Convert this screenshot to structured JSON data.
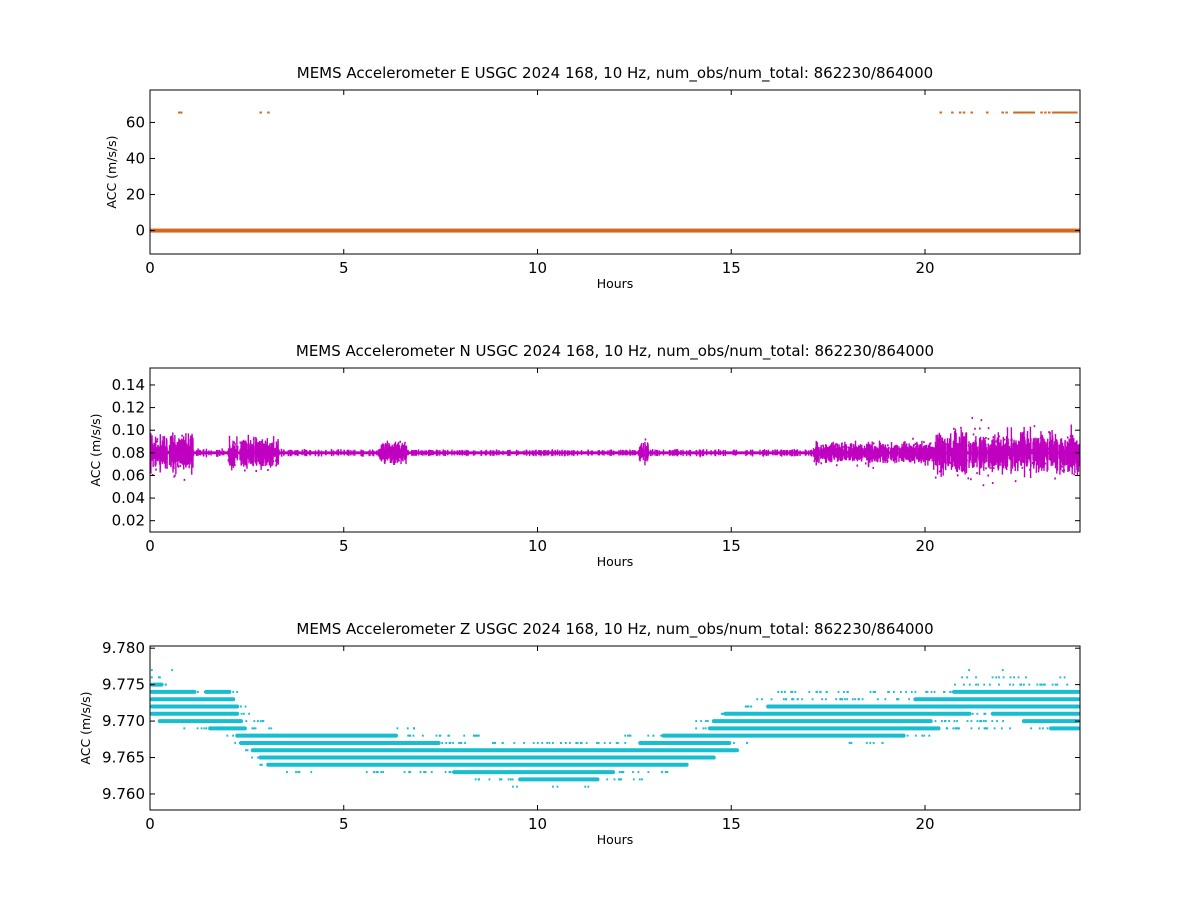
{
  "chart_data": [
    {
      "type": "scatter",
      "title": "MEMS Accelerometer E USGC 2024 168, 10 Hz, num_obs/num_total: 862230/864000",
      "xlabel": "Hours",
      "ylabel": "ACC (m/s/s)",
      "xlim": [
        0,
        24
      ],
      "ylim": [
        -13,
        78
      ],
      "xticks": [
        0,
        5,
        10,
        15,
        20
      ],
      "yticks": [
        0,
        20,
        40,
        60
      ],
      "color": "#d2691e",
      "series": [
        {
          "baseline": {
            "x_range": [
              0,
              24
            ],
            "y": 0
          },
          "spikes": {
            "y": 65.5,
            "x": [
              0.75,
              0.8,
              2.85,
              3.05,
              20.4,
              20.7,
              20.9,
              21.0,
              21.2,
              21.6,
              22.0,
              22.1,
              22.3,
              22.35,
              22.4,
              22.45,
              22.5,
              22.55,
              22.6,
              22.65,
              22.7,
              22.75,
              22.8,
              23.0,
              23.1,
              23.2,
              23.3,
              23.35,
              23.4,
              23.45,
              23.5,
              23.55,
              23.6,
              23.65,
              23.7,
              23.75,
              23.8,
              23.85,
              23.9
            ]
          }
        }
      ]
    },
    {
      "type": "scatter",
      "title": "MEMS Accelerometer N USGC 2024 168, 10 Hz, num_obs/num_total: 862230/864000",
      "xlabel": "Hours",
      "ylabel": "ACC (m/s/s)",
      "xlim": [
        0,
        24
      ],
      "ylim": [
        0.01,
        0.155
      ],
      "xticks": [
        0,
        5,
        10,
        15,
        20
      ],
      "yticks": [
        0.02,
        0.04,
        0.06,
        0.08,
        0.1,
        0.12,
        0.14
      ],
      "ytick_labels": [
        "0.02",
        "0.04",
        "0.06",
        "0.08",
        "0.10",
        "0.12",
        "0.14"
      ],
      "color": "#c000c0",
      "series": [
        {
          "center": 0.08,
          "segments": [
            {
              "x": [
                0.0,
                1.1
              ],
              "spread": 0.045
            },
            {
              "x": [
                1.1,
                2.0
              ],
              "spread": 0.005
            },
            {
              "x": [
                2.0,
                3.3
              ],
              "spread": 0.035
            },
            {
              "x": [
                3.3,
                5.9
              ],
              "spread": 0.004
            },
            {
              "x": [
                5.9,
                6.6
              ],
              "spread": 0.022
            },
            {
              "x": [
                6.6,
                12.6
              ],
              "spread": 0.003
            },
            {
              "x": [
                12.6,
                12.85
              ],
              "spread": 0.022
            },
            {
              "x": [
                12.85,
                17.1
              ],
              "spread": 0.004
            },
            {
              "x": [
                17.1,
                20.2
              ],
              "spread": 0.022
            },
            {
              "x": [
                20.2,
                24.0
              ],
              "spread": 0.048
            }
          ]
        }
      ]
    },
    {
      "type": "scatter",
      "title": "MEMS Accelerometer Z USGC 2024 168, 10 Hz, num_obs/num_total: 862230/864000",
      "xlabel": "Hours",
      "ylabel": "ACC (m/s/s)",
      "xlim": [
        0,
        24
      ],
      "ylim": [
        9.7578,
        9.7803
      ],
      "xticks": [
        0,
        5,
        10,
        15,
        20
      ],
      "yticks": [
        9.76,
        9.765,
        9.77,
        9.775,
        9.78
      ],
      "ytick_labels": [
        "9.760",
        "9.765",
        "9.770",
        "9.775",
        "9.780"
      ],
      "color": "#17becf",
      "series": [
        {
          "quantization": 0.001,
          "bands": [
            {
              "y": 9.777,
              "dense": [],
              "sparse": [
                [
                  0.0,
                  0.05
                ],
                [
                  0.5,
                  0.55
                ],
                [
                  21.1,
                  21.2
                ],
                [
                  21.9,
                  22.0
                ]
              ]
            },
            {
              "y": 9.776,
              "dense": [],
              "sparse": [
                [
                  0.0,
                  0.1
                ],
                [
                  0.1,
                  0.4
                ],
                [
                  20.9,
                  21.3
                ],
                [
                  21.6,
                  22.6
                ],
                [
                  23.3,
                  23.6
                ]
              ]
            },
            {
              "y": 9.775,
              "dense": [
                [
                  0.0,
                  0.35
                ]
              ],
              "sparse": [
                [
                  0.35,
                  0.6
                ],
                [
                  20.6,
                  24.0
                ]
              ]
            },
            {
              "y": 9.774,
              "dense": [
                [
                  0.0,
                  1.2
                ],
                [
                  1.4,
                  2.1
                ],
                [
                  20.7,
                  24.0
                ]
              ],
              "sparse": [
                [
                  1.2,
                  1.4
                ],
                [
                  2.1,
                  2.3
                ],
                [
                  16.1,
                  20.7
                ]
              ]
            },
            {
              "y": 9.773,
              "dense": [
                [
                  0.0,
                  2.2
                ],
                [
                  19.7,
                  24.0
                ]
              ],
              "sparse": [
                [
                  15.5,
                  19.7
                ]
              ]
            },
            {
              "y": 9.772,
              "dense": [
                [
                  0.0,
                  2.3
                ],
                [
                  15.9,
                  24.0
                ]
              ],
              "sparse": [
                [
                  2.3,
                  2.5
                ],
                [
                  15.2,
                  15.9
                ]
              ]
            },
            {
              "y": 9.771,
              "dense": [
                [
                  0.0,
                  2.3
                ],
                [
                  14.8,
                  21.2
                ],
                [
                  21.7,
                  24.0
                ]
              ],
              "sparse": [
                [
                  2.3,
                  2.7
                ],
                [
                  14.4,
                  14.8
                ],
                [
                  21.2,
                  21.7
                ]
              ]
            },
            {
              "y": 9.77,
              "dense": [
                [
                  0.2,
                  2.4
                ],
                [
                  14.5,
                  20.2
                ],
                [
                  22.5,
                  24.0
                ]
              ],
              "sparse": [
                [
                  2.4,
                  3.2
                ],
                [
                  14.0,
                  14.5
                ],
                [
                  20.2,
                  22.5
                ]
              ]
            },
            {
              "y": 9.769,
              "dense": [
                [
                  1.5,
                  2.5
                ],
                [
                  14.4,
                  20.4
                ],
                [
                  23.2,
                  24.0
                ]
              ],
              "sparse": [
                [
                  0.8,
                  1.5
                ],
                [
                  2.5,
                  3.2
                ],
                [
                  6.3,
                  6.8
                ],
                [
                  13.9,
                  14.4
                ],
                [
                  20.4,
                  23.2
                ]
              ]
            },
            {
              "y": 9.768,
              "dense": [
                [
                  2.2,
                  6.4
                ],
                [
                  13.2,
                  19.5
                ]
              ],
              "sparse": [
                [
                  1.9,
                  2.2
                ],
                [
                  6.4,
                  8.6
                ],
                [
                  12.2,
                  13.2
                ],
                [
                  19.5,
                  20.2
                ]
              ]
            },
            {
              "y": 9.767,
              "dense": [
                [
                  2.3,
                  7.5
                ],
                [
                  12.6,
                  15.0
                ]
              ],
              "sparse": [
                [
                  2.1,
                  2.3
                ],
                [
                  7.5,
                  12.6
                ],
                [
                  15.0,
                  15.4
                ],
                [
                  18.0,
                  18.9
                ]
              ]
            },
            {
              "y": 9.766,
              "dense": [
                [
                  2.6,
                  15.2
                ]
              ],
              "sparse": [
                [
                  2.4,
                  2.6
                ]
              ]
            },
            {
              "y": 9.765,
              "dense": [
                [
                  2.8,
                  14.6
                ]
              ],
              "sparse": [
                [
                  2.6,
                  2.8
                ]
              ]
            },
            {
              "y": 9.764,
              "dense": [
                [
                  3.0,
                  13.9
                ]
              ],
              "sparse": [
                [
                  2.8,
                  3.0
                ]
              ]
            },
            {
              "y": 9.763,
              "dense": [
                [
                  7.8,
                  12.0
                ]
              ],
              "sparse": [
                [
                  3.5,
                  4.2
                ],
                [
                  5.5,
                  7.8
                ],
                [
                  12.0,
                  13.4
                ]
              ]
            },
            {
              "y": 9.762,
              "dense": [
                [
                  9.5,
                  11.6
                ]
              ],
              "sparse": [
                [
                  8.2,
                  9.5
                ],
                [
                  11.6,
                  12.7
                ]
              ]
            },
            {
              "y": 9.761,
              "dense": [],
              "sparse": [
                [
                  9.3,
                  9.5
                ],
                [
                  10.3,
                  10.5
                ],
                [
                  11.2,
                  11.5
                ]
              ]
            }
          ]
        }
      ]
    }
  ]
}
